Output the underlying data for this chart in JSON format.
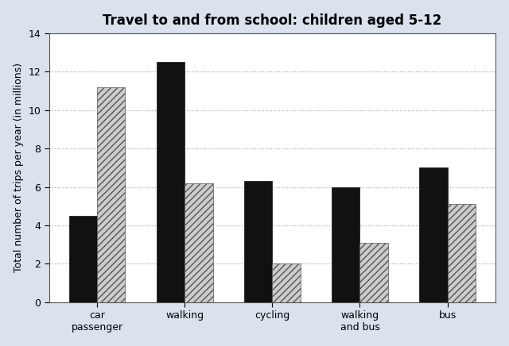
{
  "title": "Travel to and from school: children aged 5-12",
  "ylabel": "Total number of trips per year (in millions)",
  "categories": [
    "car\npassenger",
    "walking",
    "cycling",
    "walking\nand bus",
    "bus"
  ],
  "values_1990": [
    4.5,
    12.5,
    6.3,
    6.0,
    7.0
  ],
  "values_2000": [
    11.2,
    6.2,
    2.0,
    3.1,
    5.1
  ],
  "color_1990": "#111111",
  "hatch_2000": "////",
  "ylim": [
    0,
    14
  ],
  "yticks": [
    0,
    2,
    4,
    6,
    8,
    10,
    12,
    14
  ],
  "bar_width": 0.32,
  "background_color": "#d9e2ed",
  "plot_background": "#ffffff",
  "title_fontsize": 12,
  "label_fontsize": 9,
  "tick_fontsize": 9,
  "grid_color": "#aaaaaa",
  "spine_color": "#555555"
}
